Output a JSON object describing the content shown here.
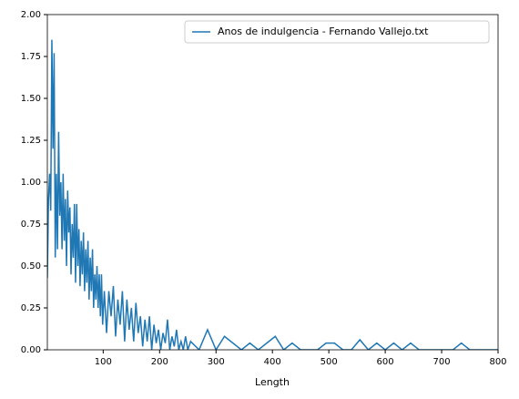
{
  "chart_data": {
    "type": "line",
    "x_label": "Length",
    "x": [
      1,
      3,
      5,
      7,
      9,
      11,
      13,
      15,
      17,
      19,
      21,
      23,
      25,
      27,
      29,
      31,
      33,
      35,
      37,
      39,
      41,
      43,
      45,
      47,
      49,
      51,
      53,
      55,
      57,
      59,
      61,
      63,
      65,
      67,
      69,
      71,
      73,
      75,
      77,
      79,
      81,
      83,
      85,
      87,
      89,
      91,
      93,
      95,
      97,
      99,
      102,
      106,
      110,
      114,
      118,
      122,
      126,
      130,
      134,
      138,
      142,
      146,
      150,
      154,
      158,
      162,
      166,
      170,
      174,
      178,
      182,
      186,
      190,
      194,
      198,
      202,
      206,
      210,
      214,
      218,
      222,
      226,
      230,
      234,
      238,
      242,
      246,
      250,
      255,
      270,
      285,
      300,
      315,
      330,
      345,
      360,
      375,
      390,
      405,
      420,
      435,
      450,
      465,
      480,
      495,
      510,
      525,
      540,
      555,
      570,
      585,
      600,
      615,
      630,
      645,
      660,
      675,
      690,
      705,
      720,
      735,
      750,
      765,
      780,
      795,
      800
    ],
    "series": [
      {
        "name": "Anos de indulgencia - Fernando Vallejo.txt",
        "color": "#1f77b4",
        "values": [
          0.43,
          0.9,
          1.05,
          0.83,
          1.85,
          1.2,
          1.77,
          0.55,
          1.05,
          0.6,
          1.3,
          0.8,
          1.0,
          0.6,
          1.05,
          0.65,
          0.9,
          0.5,
          0.95,
          0.7,
          0.85,
          0.45,
          0.75,
          0.55,
          0.87,
          0.4,
          0.87,
          0.5,
          0.72,
          0.38,
          0.65,
          0.45,
          0.7,
          0.35,
          0.6,
          0.4,
          0.65,
          0.3,
          0.55,
          0.35,
          0.6,
          0.25,
          0.45,
          0.3,
          0.5,
          0.25,
          0.45,
          0.2,
          0.45,
          0.15,
          0.35,
          0.1,
          0.35,
          0.2,
          0.38,
          0.08,
          0.3,
          0.15,
          0.35,
          0.05,
          0.3,
          0.12,
          0.25,
          0.05,
          0.28,
          0.1,
          0.2,
          0.02,
          0.18,
          0.05,
          0.2,
          0,
          0.15,
          0.04,
          0.12,
          0,
          0.1,
          0.04,
          0.18,
          0,
          0.08,
          0.02,
          0.12,
          0,
          0.05,
          0,
          0.08,
          0,
          0.05,
          0,
          0.12,
          0,
          0.08,
          0.04,
          0,
          0.04,
          0,
          0.04,
          0.08,
          0,
          0.04,
          0,
          0,
          0,
          0.04,
          0.04,
          0,
          0,
          0.06,
          0,
          0.04,
          0,
          0.04,
          0,
          0.04,
          0,
          0,
          0,
          0,
          0,
          0.04,
          0,
          0,
          0,
          0,
          0
        ]
      }
    ],
    "xlim": [
      1,
      800
    ],
    "xticks": [
      100,
      200,
      300,
      400,
      500,
      600,
      700,
      800
    ],
    "ylim": [
      0,
      2
    ],
    "yticks": [
      {
        "value": 0,
        "label": "0.00"
      },
      {
        "value": 0.25,
        "label": "0.25"
      },
      {
        "value": 0.5,
        "label": "0.50"
      },
      {
        "value": 0.75,
        "label": "0.75"
      },
      {
        "value": 1,
        "label": "1.00"
      },
      {
        "value": 1.25,
        "label": "1.25"
      },
      {
        "value": 1.5,
        "label": "1.50"
      },
      {
        "value": 1.75,
        "label": "1.75"
      },
      {
        "value": 2,
        "label": "2.00"
      }
    ],
    "legend": "upper right"
  }
}
